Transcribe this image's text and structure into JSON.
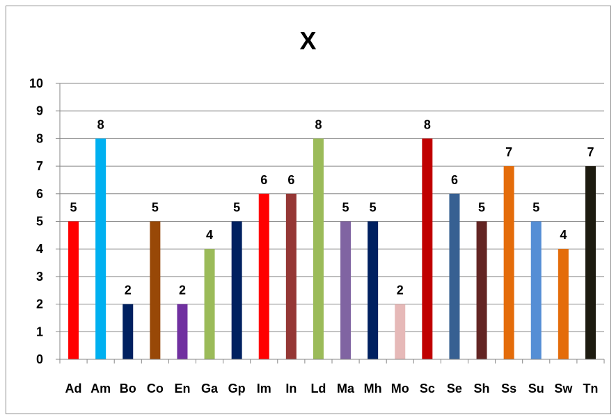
{
  "chart_data": {
    "type": "bar",
    "title": "X",
    "categories": [
      "Ad",
      "Am",
      "Bo",
      "Co",
      "En",
      "Ga",
      "Gp",
      "Im",
      "In",
      "Ld",
      "Ma",
      "Mh",
      "Mo",
      "Sc",
      "Se",
      "Sh",
      "Ss",
      "Su",
      "Sw",
      "Tn"
    ],
    "values": [
      5,
      8,
      2,
      5,
      2,
      4,
      5,
      6,
      6,
      8,
      5,
      5,
      2,
      8,
      6,
      5,
      7,
      5,
      4,
      7
    ],
    "colors": [
      "#ff0000",
      "#00b0f0",
      "#002060",
      "#984807",
      "#7030a0",
      "#9bbb59",
      "#002060",
      "#ff0000",
      "#953735",
      "#9bbb59",
      "#8064a2",
      "#002060",
      "#e6b9b8",
      "#c00000",
      "#376092",
      "#632523",
      "#e46c0a",
      "#558ed5",
      "#e46c0a",
      "#1d1b10"
    ],
    "yticks": [
      "0",
      "1",
      "2",
      "3",
      "4",
      "5",
      "6",
      "7",
      "8",
      "9",
      "10"
    ],
    "ylim": [
      0,
      10
    ],
    "grid": true,
    "legend": "none",
    "xlabel": "",
    "ylabel": ""
  }
}
